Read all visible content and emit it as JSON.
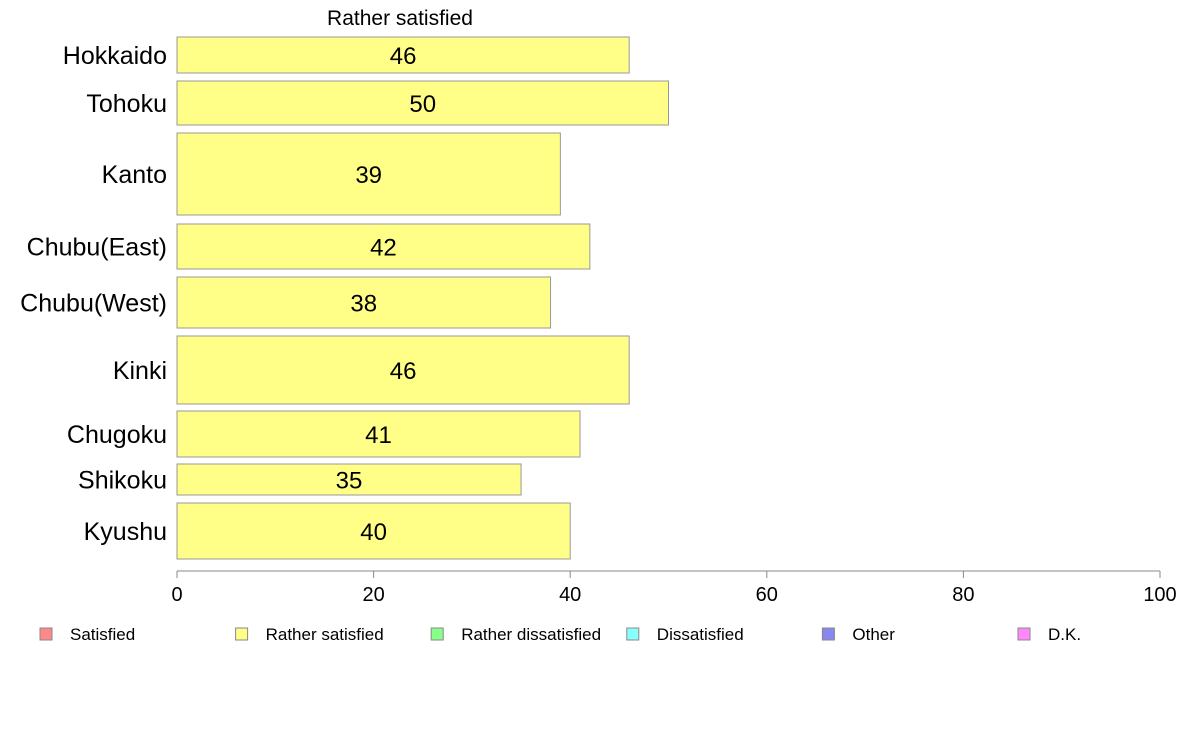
{
  "chart_data": {
    "type": "bar",
    "orientation": "horizontal",
    "title": "Rather satisfied",
    "categories": [
      "Hokkaido",
      "Tohoku",
      "Kanto",
      "Chubu(East)",
      "Chubu(West)",
      "Kinki",
      "Chugoku",
      "Shikoku",
      "Kyushu"
    ],
    "series": [
      {
        "name": "Rather satisfied",
        "values": [
          46,
          50,
          39,
          42,
          38,
          46,
          41,
          35,
          40
        ],
        "color": "#ffff88"
      }
    ],
    "value_labels": [
      "46",
      "50",
      "39",
      "42",
      "38",
      "46",
      "41",
      "35",
      "40"
    ],
    "xlim": [
      0,
      100
    ],
    "xticks": [
      0,
      20,
      40,
      60,
      80,
      100
    ],
    "xtick_labels": [
      "0",
      "20",
      "40",
      "60",
      "80",
      "100"
    ],
    "grid": false,
    "legend_position": "bottom",
    "legend": [
      {
        "label": "Satisfied",
        "color": "#ff8888"
      },
      {
        "label": "Rather satisfied",
        "color": "#ffff88"
      },
      {
        "label": "Rather dissatisfied",
        "color": "#88ff88"
      },
      {
        "label": "Dissatisfied",
        "color": "#88ffff"
      },
      {
        "label": "Other",
        "color": "#8888ee"
      },
      {
        "label": "D.K.",
        "color": "#ff88ff"
      }
    ]
  }
}
